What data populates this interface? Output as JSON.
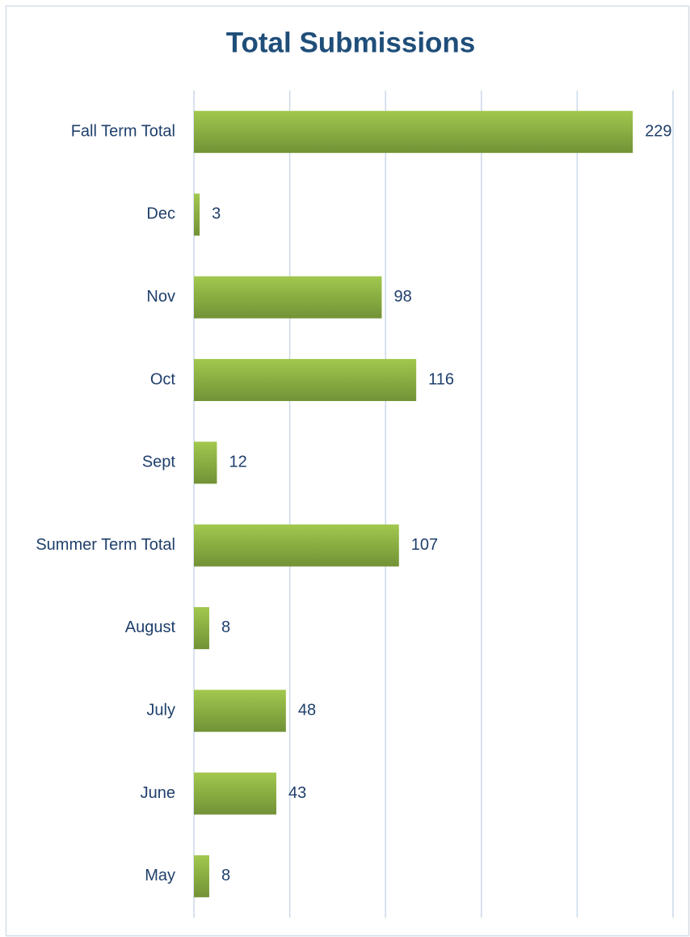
{
  "chart_data": {
    "type": "bar",
    "orientation": "horizontal",
    "title": "Total Submissions",
    "categories": [
      "Fall Term Total",
      "Dec",
      "Nov",
      "Oct",
      "Sept",
      "Summer Term Total",
      "August",
      "July",
      "June",
      "May"
    ],
    "values": [
      229,
      3,
      98,
      116,
      12,
      107,
      8,
      48,
      43,
      8
    ],
    "color": "#8bb043",
    "xlim": [
      0,
      250
    ],
    "xticks": [
      0,
      50,
      100,
      150,
      200,
      250
    ],
    "grid": true
  }
}
